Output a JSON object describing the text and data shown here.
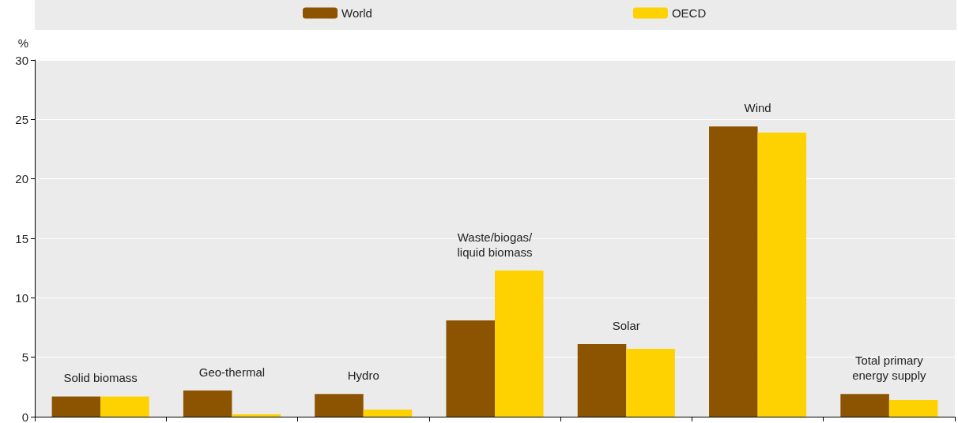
{
  "chart_data": {
    "type": "bar",
    "ylabel": "%",
    "categories": [
      "Solid biomass",
      "Geo-thermal",
      "Hydro",
      "Waste/biogas/\nliquid biomass",
      "Solar",
      "Wind",
      "Total primary\nenergy supply"
    ],
    "series": [
      {
        "name": "World",
        "color": "#8c5300",
        "values": [
          1.7,
          2.2,
          1.9,
          8.1,
          6.1,
          24.4,
          1.9
        ]
      },
      {
        "name": "OECD",
        "color": "#fdd200",
        "values": [
          1.7,
          0.2,
          0.6,
          12.3,
          5.7,
          23.9,
          1.4
        ]
      }
    ],
    "ylim": [
      0,
      30
    ],
    "yticks": [
      0,
      5,
      10,
      15,
      20,
      25,
      30
    ],
    "grid": "y",
    "legend": "top"
  }
}
